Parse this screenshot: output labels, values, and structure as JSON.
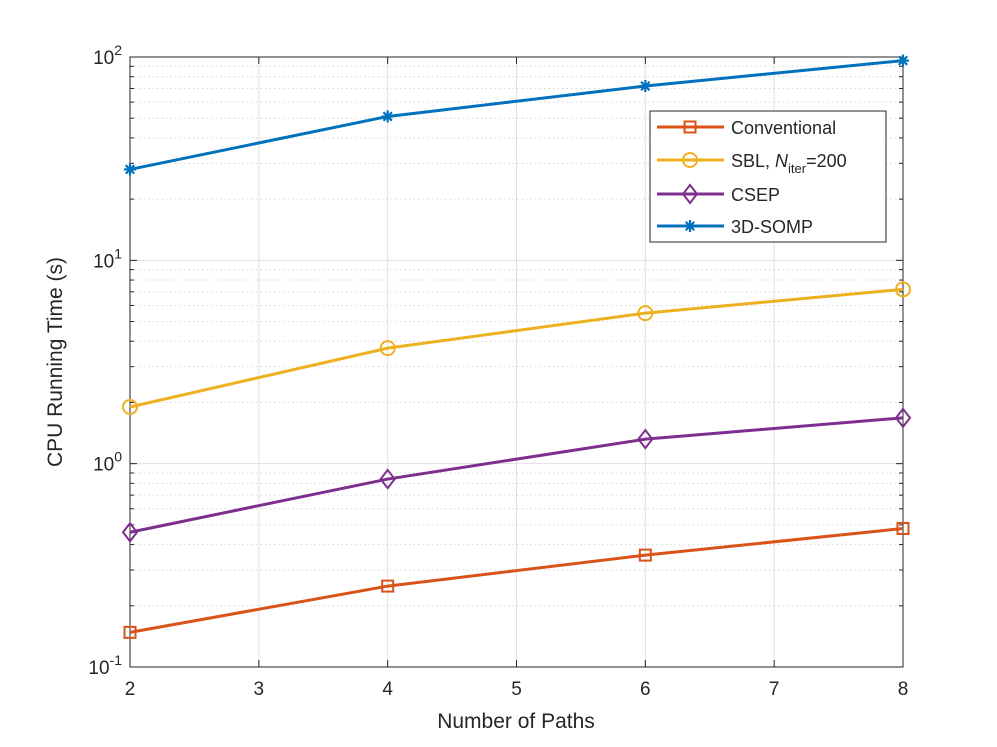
{
  "chart_data": {
    "type": "line",
    "title": "",
    "xlabel": "Number of Paths",
    "ylabel": "CPU Running Time (s)",
    "xlim": [
      2,
      8
    ],
    "ylim": [
      0.1,
      100
    ],
    "yscale": "log",
    "grid": true,
    "x_ticks": [
      "2",
      "3",
      "4",
      "5",
      "6",
      "7",
      "8"
    ],
    "y_ticks": [
      {
        "base": "10",
        "exp": "-1"
      },
      {
        "base": "10",
        "exp": "0"
      },
      {
        "base": "10",
        "exp": "1"
      },
      {
        "base": "10",
        "exp": "2"
      }
    ],
    "legend_position": "top-right",
    "x": [
      2,
      4,
      6,
      8
    ],
    "series": [
      {
        "name": "Conventional",
        "color": "#D95319",
        "marker": "square",
        "values": [
          0.148,
          0.25,
          0.355,
          0.48
        ]
      },
      {
        "name": "SBL, ",
        "name_italic": "N",
        "name_sub": "iter",
        "name_suffix": "=200",
        "color": "#EDB120",
        "marker": "circle",
        "values": [
          1.9,
          3.7,
          5.5,
          7.2
        ]
      },
      {
        "name": "CSEP",
        "color": "#7E2F8E",
        "marker": "diamond",
        "values": [
          0.46,
          0.84,
          1.32,
          1.68
        ]
      },
      {
        "name": "3D-SOMP",
        "color": "#0072BD",
        "marker": "asterisk",
        "values": [
          28,
          51,
          72,
          96
        ]
      }
    ]
  }
}
